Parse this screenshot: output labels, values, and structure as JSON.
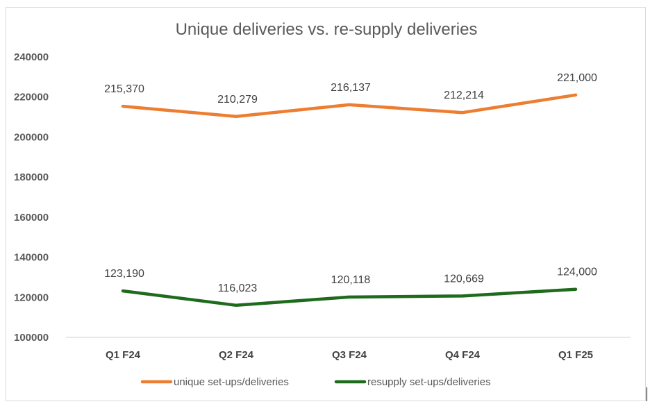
{
  "chart_data": {
    "type": "line",
    "title": "Unique deliveries vs. re-supply deliveries",
    "categories": [
      "Q1 F24",
      "Q2 F24",
      "Q3 F24",
      "Q4 F24",
      "Q1 F25"
    ],
    "yticks": [
      "240000",
      "220000",
      "200000",
      "180000",
      "160000",
      "140000",
      "120000",
      "100000"
    ],
    "ylim": [
      100000,
      240000
    ],
    "series": [
      {
        "name": "unique set-ups/deliveries",
        "color": "#ED7D31",
        "values": [
          215370,
          210279,
          216137,
          212214,
          221000
        ],
        "labels": [
          "215,370",
          "210,279",
          "216,137",
          "212,214",
          "221,000"
        ]
      },
      {
        "name": "resupply set-ups/deliveries",
        "color": "#1E6B1E",
        "values": [
          123190,
          116023,
          120118,
          120669,
          124000
        ],
        "labels": [
          "123,190",
          "116,023",
          "120,118",
          "120,669",
          "124,000"
        ]
      }
    ],
    "legend": "bottom"
  }
}
